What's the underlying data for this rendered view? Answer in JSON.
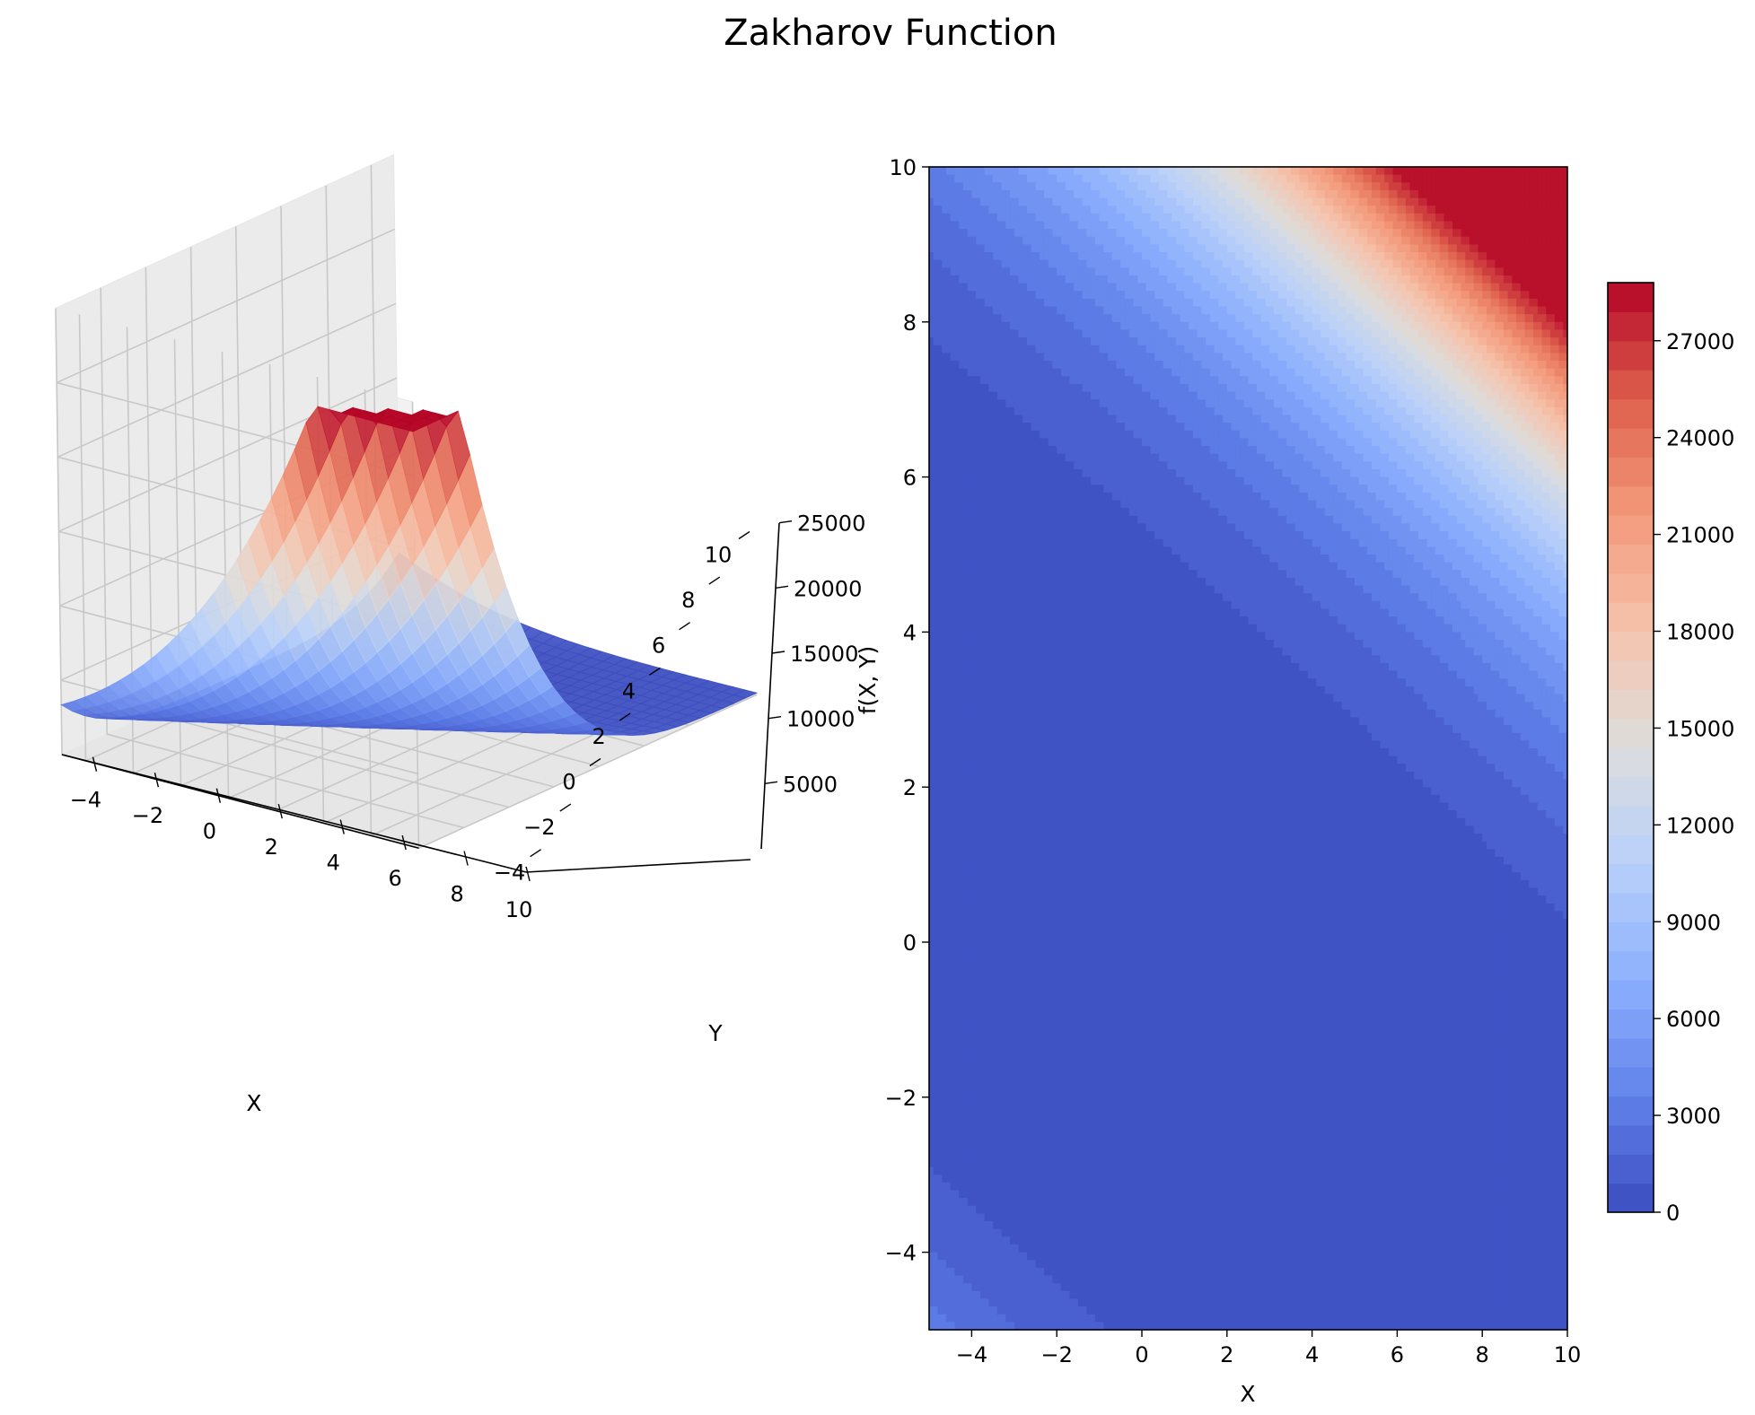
{
  "figure": {
    "title": "Zakharov Function"
  },
  "chart_data": [
    {
      "type": "surface3d",
      "function": "zakharov",
      "x_range": [
        -5,
        10
      ],
      "y_range": [
        -5,
        10
      ],
      "xlabel": "X",
      "ylabel": "Y",
      "zlabel": "f(X, Y)",
      "colormap": "coolwarm",
      "surface_clip_max": 28000,
      "x_ticks": [
        "−4",
        "−2",
        "0",
        "2",
        "4",
        "6",
        "8",
        "10"
      ],
      "y_ticks": [
        "−4",
        "−2",
        "0",
        "2",
        "4",
        "6",
        "8",
        "10"
      ],
      "z_ticks": [
        "5000",
        "10000",
        "15000",
        "20000",
        "25000"
      ],
      "x_tick_values": [
        -4,
        -2,
        0,
        2,
        4,
        6,
        8,
        10
      ],
      "y_tick_values": [
        -4,
        -2,
        0,
        2,
        4,
        6,
        8,
        10
      ],
      "z_tick_values": [
        5000,
        10000,
        15000,
        20000,
        25000
      ]
    },
    {
      "type": "contourf",
      "function": "zakharov",
      "x_range": [
        -5,
        10
      ],
      "y_range": [
        -5,
        10
      ],
      "xlabel": "X",
      "colormap": "coolwarm",
      "levels_min": 0,
      "levels_max": 28800,
      "level_step": 900,
      "x_ticks": [
        "−4",
        "−2",
        "0",
        "2",
        "4",
        "6",
        "8",
        "10"
      ],
      "y_ticks": [
        "−4",
        "−2",
        "0",
        "2",
        "4",
        "6",
        "8",
        "10"
      ],
      "x_tick_values": [
        -4,
        -2,
        0,
        2,
        4,
        6,
        8,
        10
      ],
      "y_tick_values": [
        -4,
        -2,
        0,
        2,
        4,
        6,
        8,
        10
      ],
      "colorbar_ticks": [
        "0",
        "3000",
        "6000",
        "9000",
        "12000",
        "15000",
        "18000",
        "21000",
        "24000",
        "27000"
      ],
      "colorbar_tick_values": [
        0,
        3000,
        6000,
        9000,
        12000,
        15000,
        18000,
        21000,
        24000,
        27000
      ]
    }
  ]
}
